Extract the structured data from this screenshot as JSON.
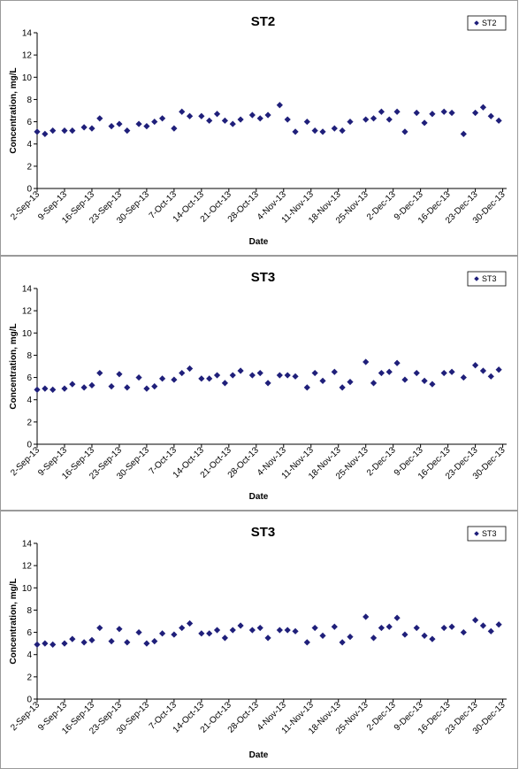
{
  "colors": {
    "marker": "#1f1f7a",
    "axis": "#000000",
    "frame": "#9a9a9a"
  },
  "x_tick_labels": [
    "2-Sep-13",
    "9-Sep-13",
    "16-Sep-13",
    "23-Sep-13",
    "30-Sep-13",
    "7-Oct-13",
    "14-Oct-13",
    "21-Oct-13",
    "28-Oct-13",
    "4-Nov-13",
    "11-Nov-13",
    "18-Nov-13",
    "25-Nov-13",
    "2-Dec-13",
    "9-Dec-13",
    "16-Dec-13",
    "23-Dec-13",
    "30-Dec-13"
  ],
  "chart_data": [
    {
      "type": "scatter",
      "title": "ST2",
      "xlabel": "Date",
      "ylabel": "Concentration, mg/L",
      "xlim": [
        "2013-09-02",
        "2013-12-31"
      ],
      "ylim": [
        0,
        14
      ],
      "y_ticks": [
        0,
        2,
        4,
        6,
        8,
        10,
        12,
        14
      ],
      "grid": false,
      "legend_position": "top-right",
      "series": [
        {
          "name": "ST2",
          "x": [
            "2013-09-02",
            "2013-09-04",
            "2013-09-06",
            "2013-09-09",
            "2013-09-11",
            "2013-09-14",
            "2013-09-16",
            "2013-09-18",
            "2013-09-21",
            "2013-09-23",
            "2013-09-25",
            "2013-09-28",
            "2013-09-30",
            "2013-10-02",
            "2013-10-04",
            "2013-10-07",
            "2013-10-09",
            "2013-10-11",
            "2013-10-14",
            "2013-10-16",
            "2013-10-18",
            "2013-10-20",
            "2013-10-22",
            "2013-10-24",
            "2013-10-27",
            "2013-10-29",
            "2013-10-31",
            "2013-11-03",
            "2013-11-05",
            "2013-11-07",
            "2013-11-10",
            "2013-11-12",
            "2013-11-14",
            "2013-11-17",
            "2013-11-19",
            "2013-11-21",
            "2013-11-25",
            "2013-11-27",
            "2013-11-29",
            "2013-12-01",
            "2013-12-03",
            "2013-12-05",
            "2013-12-08",
            "2013-12-10",
            "2013-12-12",
            "2013-12-15",
            "2013-12-17",
            "2013-12-20",
            "2013-12-23",
            "2013-12-25",
            "2013-12-27",
            "2013-12-29"
          ],
          "y": [
            5.1,
            4.9,
            5.2,
            5.2,
            5.2,
            5.5,
            5.4,
            6.3,
            5.6,
            5.8,
            5.2,
            5.8,
            5.6,
            6.0,
            6.3,
            5.4,
            6.9,
            6.5,
            6.5,
            6.1,
            6.7,
            6.1,
            5.8,
            6.2,
            6.6,
            6.3,
            6.6,
            7.5,
            6.2,
            5.1,
            6.0,
            5.2,
            5.1,
            5.4,
            5.2,
            6.0,
            6.2,
            6.3,
            6.9,
            6.2,
            6.9,
            5.1,
            6.8,
            5.9,
            6.7,
            6.9,
            6.8,
            4.9,
            6.8,
            7.3,
            6.5,
            6.1
          ]
        }
      ]
    },
    {
      "type": "scatter",
      "title": "ST3",
      "xlabel": "Date",
      "ylabel": "Concentration, mg/L",
      "xlim": [
        "2013-09-02",
        "2013-12-31"
      ],
      "ylim": [
        0,
        14
      ],
      "y_ticks": [
        0,
        2,
        4,
        6,
        8,
        10,
        12,
        14
      ],
      "grid": false,
      "legend_position": "top-right",
      "series": [
        {
          "name": "ST3",
          "x": [
            "2013-09-02",
            "2013-09-04",
            "2013-09-06",
            "2013-09-09",
            "2013-09-11",
            "2013-09-14",
            "2013-09-16",
            "2013-09-18",
            "2013-09-21",
            "2013-09-23",
            "2013-09-25",
            "2013-09-28",
            "2013-09-30",
            "2013-10-02",
            "2013-10-04",
            "2013-10-07",
            "2013-10-09",
            "2013-10-11",
            "2013-10-14",
            "2013-10-16",
            "2013-10-18",
            "2013-10-20",
            "2013-10-22",
            "2013-10-24",
            "2013-10-27",
            "2013-10-29",
            "2013-10-31",
            "2013-11-03",
            "2013-11-05",
            "2013-11-07",
            "2013-11-10",
            "2013-11-12",
            "2013-11-14",
            "2013-11-17",
            "2013-11-19",
            "2013-11-21",
            "2013-11-25",
            "2013-11-27",
            "2013-11-29",
            "2013-12-01",
            "2013-12-03",
            "2013-12-05",
            "2013-12-08",
            "2013-12-10",
            "2013-12-12",
            "2013-12-15",
            "2013-12-17",
            "2013-12-20",
            "2013-12-23",
            "2013-12-25",
            "2013-12-27",
            "2013-12-29"
          ],
          "y": [
            4.9,
            5.0,
            4.9,
            5.0,
            5.4,
            5.1,
            5.3,
            6.4,
            5.2,
            6.3,
            5.1,
            6.0,
            5.0,
            5.2,
            5.9,
            5.8,
            6.4,
            6.8,
            5.9,
            5.9,
            6.2,
            5.5,
            6.2,
            6.6,
            6.2,
            6.4,
            5.5,
            6.2,
            6.2,
            6.1,
            5.1,
            6.4,
            5.7,
            6.5,
            5.1,
            5.6,
            7.4,
            5.5,
            6.4,
            6.5,
            7.3,
            5.8,
            6.4,
            5.7,
            5.4,
            6.4,
            6.5,
            6.0,
            7.1,
            6.6,
            6.1,
            6.7
          ]
        }
      ]
    },
    {
      "type": "scatter",
      "title": "ST3",
      "xlabel": "Date",
      "ylabel": "Concentration, mg/L",
      "xlim": [
        "2013-09-02",
        "2013-12-31"
      ],
      "ylim": [
        0,
        14
      ],
      "y_ticks": [
        0,
        2,
        4,
        6,
        8,
        10,
        12,
        14
      ],
      "grid": false,
      "legend_position": "top-right",
      "series": [
        {
          "name": "ST3",
          "x": [
            "2013-09-02",
            "2013-09-04",
            "2013-09-06",
            "2013-09-09",
            "2013-09-11",
            "2013-09-14",
            "2013-09-16",
            "2013-09-18",
            "2013-09-21",
            "2013-09-23",
            "2013-09-25",
            "2013-09-28",
            "2013-09-30",
            "2013-10-02",
            "2013-10-04",
            "2013-10-07",
            "2013-10-09",
            "2013-10-11",
            "2013-10-14",
            "2013-10-16",
            "2013-10-18",
            "2013-10-20",
            "2013-10-22",
            "2013-10-24",
            "2013-10-27",
            "2013-10-29",
            "2013-10-31",
            "2013-11-03",
            "2013-11-05",
            "2013-11-07",
            "2013-11-10",
            "2013-11-12",
            "2013-11-14",
            "2013-11-17",
            "2013-11-19",
            "2013-11-21",
            "2013-11-25",
            "2013-11-27",
            "2013-11-29",
            "2013-12-01",
            "2013-12-03",
            "2013-12-05",
            "2013-12-08",
            "2013-12-10",
            "2013-12-12",
            "2013-12-15",
            "2013-12-17",
            "2013-12-20",
            "2013-12-23",
            "2013-12-25",
            "2013-12-27",
            "2013-12-29"
          ],
          "y": [
            4.9,
            5.0,
            4.9,
            5.0,
            5.4,
            5.1,
            5.3,
            6.4,
            5.2,
            6.3,
            5.1,
            6.0,
            5.0,
            5.2,
            5.9,
            5.8,
            6.4,
            6.8,
            5.9,
            5.9,
            6.2,
            5.5,
            6.2,
            6.6,
            6.2,
            6.4,
            5.5,
            6.2,
            6.2,
            6.1,
            5.1,
            6.4,
            5.7,
            6.5,
            5.1,
            5.6,
            7.4,
            5.5,
            6.4,
            6.5,
            7.3,
            5.8,
            6.4,
            5.7,
            5.4,
            6.4,
            6.5,
            6.0,
            7.1,
            6.6,
            6.1,
            6.7
          ]
        }
      ]
    }
  ]
}
